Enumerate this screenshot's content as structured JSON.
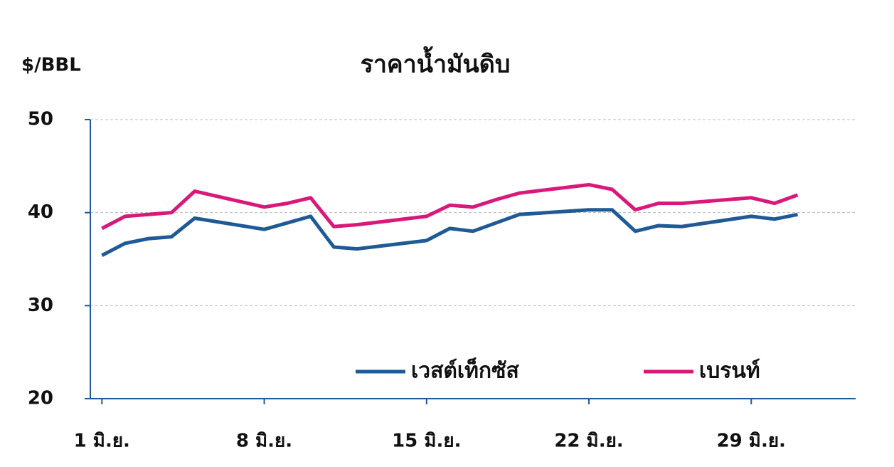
{
  "chart_data": {
    "type": "line",
    "title": "ราคาน้ำมันดิบ",
    "y_label": "$/BBL",
    "x": [
      1,
      2,
      3,
      4,
      5,
      8,
      9,
      10,
      11,
      12,
      15,
      16,
      17,
      18,
      19,
      22,
      23,
      24,
      25,
      26,
      29,
      30,
      31
    ],
    "series": [
      {
        "name": "เวสต์เท็กซัส",
        "color": "#1f5a96",
        "values": [
          35.4,
          36.7,
          37.2,
          37.4,
          39.4,
          38.2,
          38.9,
          39.6,
          36.3,
          36.1,
          37.0,
          38.3,
          38.0,
          38.9,
          39.8,
          40.3,
          40.3,
          38.0,
          38.6,
          38.5,
          39.6,
          39.3,
          39.8
        ]
      },
      {
        "name": "เบรนท์",
        "color": "#d9197a",
        "values": [
          38.3,
          39.6,
          39.8,
          40.0,
          42.3,
          40.6,
          41.0,
          41.6,
          38.5,
          38.7,
          39.6,
          40.8,
          40.6,
          41.4,
          42.1,
          43.0,
          42.5,
          40.3,
          41.0,
          41.0,
          41.6,
          41.0,
          41.9
        ]
      }
    ],
    "xlim": [
      0.5,
      33.5
    ],
    "xticks": [
      {
        "value": 1,
        "label": "1 มิ.ย."
      },
      {
        "value": 8,
        "label": "8 มิ.ย."
      },
      {
        "value": 15,
        "label": "15 มิ.ย."
      },
      {
        "value": 22,
        "label": "22 มิ.ย."
      },
      {
        "value": 29,
        "label": "29 มิ.ย."
      }
    ],
    "ylim": [
      20,
      50
    ],
    "yticks": [
      20,
      30,
      40,
      50
    ],
    "grid": true
  }
}
